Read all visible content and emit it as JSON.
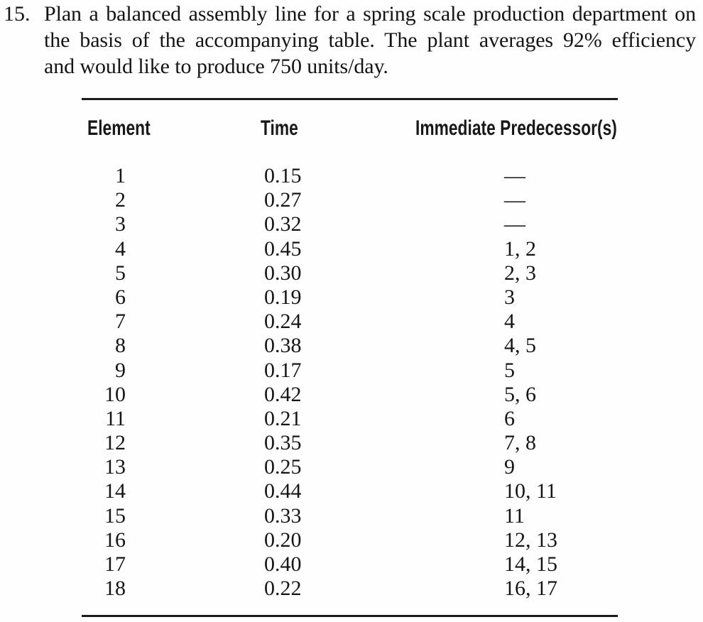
{
  "page": {
    "background": "#fefefe",
    "text_color": "#141414",
    "rule_color": "#1c1c1c"
  },
  "problem": {
    "number": "15.",
    "lines": [
      "Plan a balanced assembly line for a spring scale production department on",
      "the basis of the accompanying table. The plant averages 92% efficiency",
      "and would like to produce 750 units/day."
    ]
  },
  "table": {
    "headers": {
      "element": "Element",
      "time": "Time",
      "predecessors": "Immediate Predecessor(s)"
    },
    "rows": [
      {
        "element": "1",
        "time": "0.15",
        "predecessors": "—"
      },
      {
        "element": "2",
        "time": "0.27",
        "predecessors": "—"
      },
      {
        "element": "3",
        "time": "0.32",
        "predecessors": "—"
      },
      {
        "element": "4",
        "time": "0.45",
        "predecessors": "1, 2"
      },
      {
        "element": "5",
        "time": "0.30",
        "predecessors": "2, 3"
      },
      {
        "element": "6",
        "time": "0.19",
        "predecessors": "3"
      },
      {
        "element": "7",
        "time": "0.24",
        "predecessors": "4"
      },
      {
        "element": "8",
        "time": "0.38",
        "predecessors": "4, 5"
      },
      {
        "element": "9",
        "time": "0.17",
        "predecessors": "5"
      },
      {
        "element": "10",
        "time": "0.42",
        "predecessors": "5, 6"
      },
      {
        "element": "11",
        "time": "0.21",
        "predecessors": "6"
      },
      {
        "element": "12",
        "time": "0.35",
        "predecessors": "7, 8"
      },
      {
        "element": "13",
        "time": "0.25",
        "predecessors": "9"
      },
      {
        "element": "14",
        "time": "0.44",
        "predecessors": "10, 11"
      },
      {
        "element": "15",
        "time": "0.33",
        "predecessors": "11"
      },
      {
        "element": "16",
        "time": "0.20",
        "predecessors": "12, 13"
      },
      {
        "element": "17",
        "time": "0.40",
        "predecessors": "14, 15"
      },
      {
        "element": "18",
        "time": "0.22",
        "predecessors": "16, 17"
      }
    ]
  }
}
